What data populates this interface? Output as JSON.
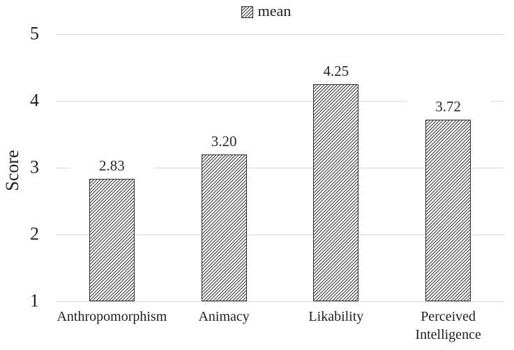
{
  "chart_data": {
    "type": "bar",
    "title": "",
    "legend": {
      "label": "mean",
      "position": "top-center",
      "swatch": "diagonal-hatch"
    },
    "categories": [
      "Anthropomorphism",
      "Animacy",
      "Likability",
      "Perceived Intelligence"
    ],
    "values": [
      2.83,
      3.2,
      4.25,
      3.72
    ],
    "value_labels": [
      "2.83",
      "3.20",
      "4.25",
      "3.72"
    ],
    "xlabel": "",
    "ylabel": "Score",
    "yticks": [
      "1",
      "2",
      "3",
      "4",
      "5"
    ],
    "ylim": [
      1,
      5
    ],
    "grid": "horizontal",
    "style": {
      "bar_fill": "fine forward-diagonal hatch",
      "hatch_color": "#2d2d2d",
      "bar_background": "#f7f7f7",
      "bar_border_color": "#2e2e2e",
      "gridline_color": "#d9d9d9",
      "text_color": "#1f1f1f",
      "background_color": "#ffffff"
    }
  }
}
